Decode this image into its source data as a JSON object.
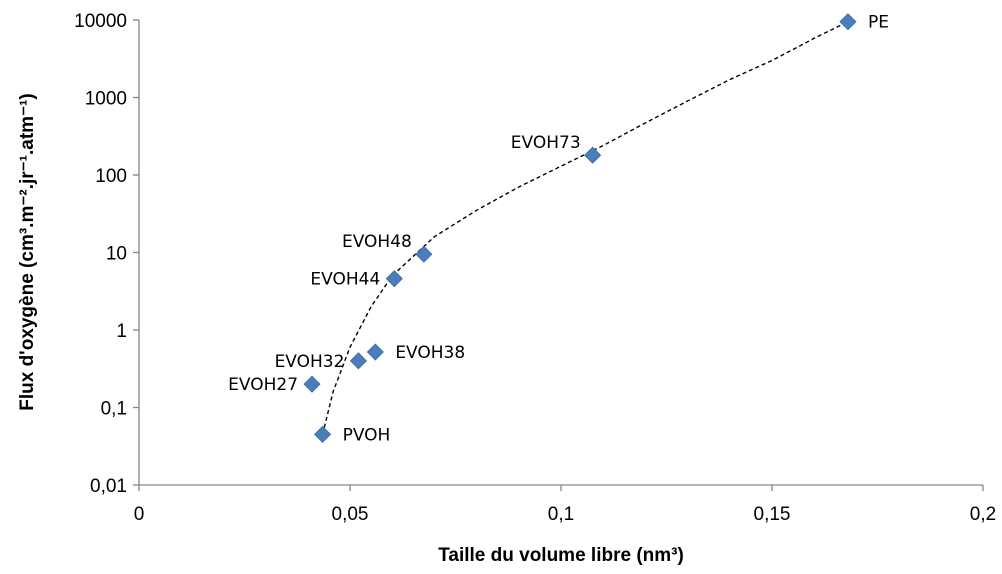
{
  "chart_data": {
    "type": "scatter",
    "xlabel": "Taille du volume libre (nm³)",
    "ylabel": "Flux d'oxygène (cm³.m⁻².jr⁻¹.atm⁻¹)",
    "xlim": [
      0,
      0.2
    ],
    "ylim": [
      0.01,
      10000
    ],
    "y_scale": "log",
    "grid": false,
    "legend": "none",
    "x_ticks": [
      {
        "value": 0,
        "label": "0"
      },
      {
        "value": 0.05,
        "label": "0,05"
      },
      {
        "value": 0.1,
        "label": "0,1"
      },
      {
        "value": 0.15,
        "label": "0,15"
      },
      {
        "value": 0.2,
        "label": "0,2"
      }
    ],
    "y_ticks": [
      {
        "value": 0.01,
        "label": "0,01"
      },
      {
        "value": 0.1,
        "label": "0,1"
      },
      {
        "value": 1,
        "label": "1"
      },
      {
        "value": 10,
        "label": "10"
      },
      {
        "value": 100,
        "label": "100"
      },
      {
        "value": 1000,
        "label": "1000"
      },
      {
        "value": 10000,
        "label": "10000"
      }
    ],
    "marker_color": "#4a7ebb",
    "trendline_color": "#000000",
    "points": [
      {
        "label": "PVOH",
        "x": 0.0435,
        "y": 0.045,
        "label_side": "right"
      },
      {
        "label": "EVOH27",
        "x": 0.041,
        "y": 0.2,
        "label_side": "left"
      },
      {
        "label": "EVOH32",
        "x": 0.052,
        "y": 0.4,
        "label_side": "left"
      },
      {
        "label": "EVOH38",
        "x": 0.056,
        "y": 0.52,
        "label_side": "right"
      },
      {
        "label": "EVOH44",
        "x": 0.0605,
        "y": 4.6,
        "label_side": "left"
      },
      {
        "label": "EVOH48",
        "x": 0.0675,
        "y": 9.5,
        "label_side": "left-up"
      },
      {
        "label": "EVOH73",
        "x": 0.1075,
        "y": 180,
        "label_side": "left-up"
      },
      {
        "label": "PE",
        "x": 0.168,
        "y": 9500,
        "label_side": "right"
      }
    ],
    "trendline": [
      {
        "x": 0.0435,
        "y": 0.045
      },
      {
        "x": 0.046,
        "y": 0.16
      },
      {
        "x": 0.05,
        "y": 0.6
      },
      {
        "x": 0.055,
        "y": 2
      },
      {
        "x": 0.06,
        "y": 5
      },
      {
        "x": 0.07,
        "y": 16
      },
      {
        "x": 0.08,
        "y": 35
      },
      {
        "x": 0.09,
        "y": 70
      },
      {
        "x": 0.1,
        "y": 130
      },
      {
        "x": 0.11,
        "y": 240
      },
      {
        "x": 0.12,
        "y": 470
      },
      {
        "x": 0.13,
        "y": 900
      },
      {
        "x": 0.14,
        "y": 1700
      },
      {
        "x": 0.15,
        "y": 3000
      },
      {
        "x": 0.16,
        "y": 5800
      },
      {
        "x": 0.168,
        "y": 9500
      }
    ]
  }
}
